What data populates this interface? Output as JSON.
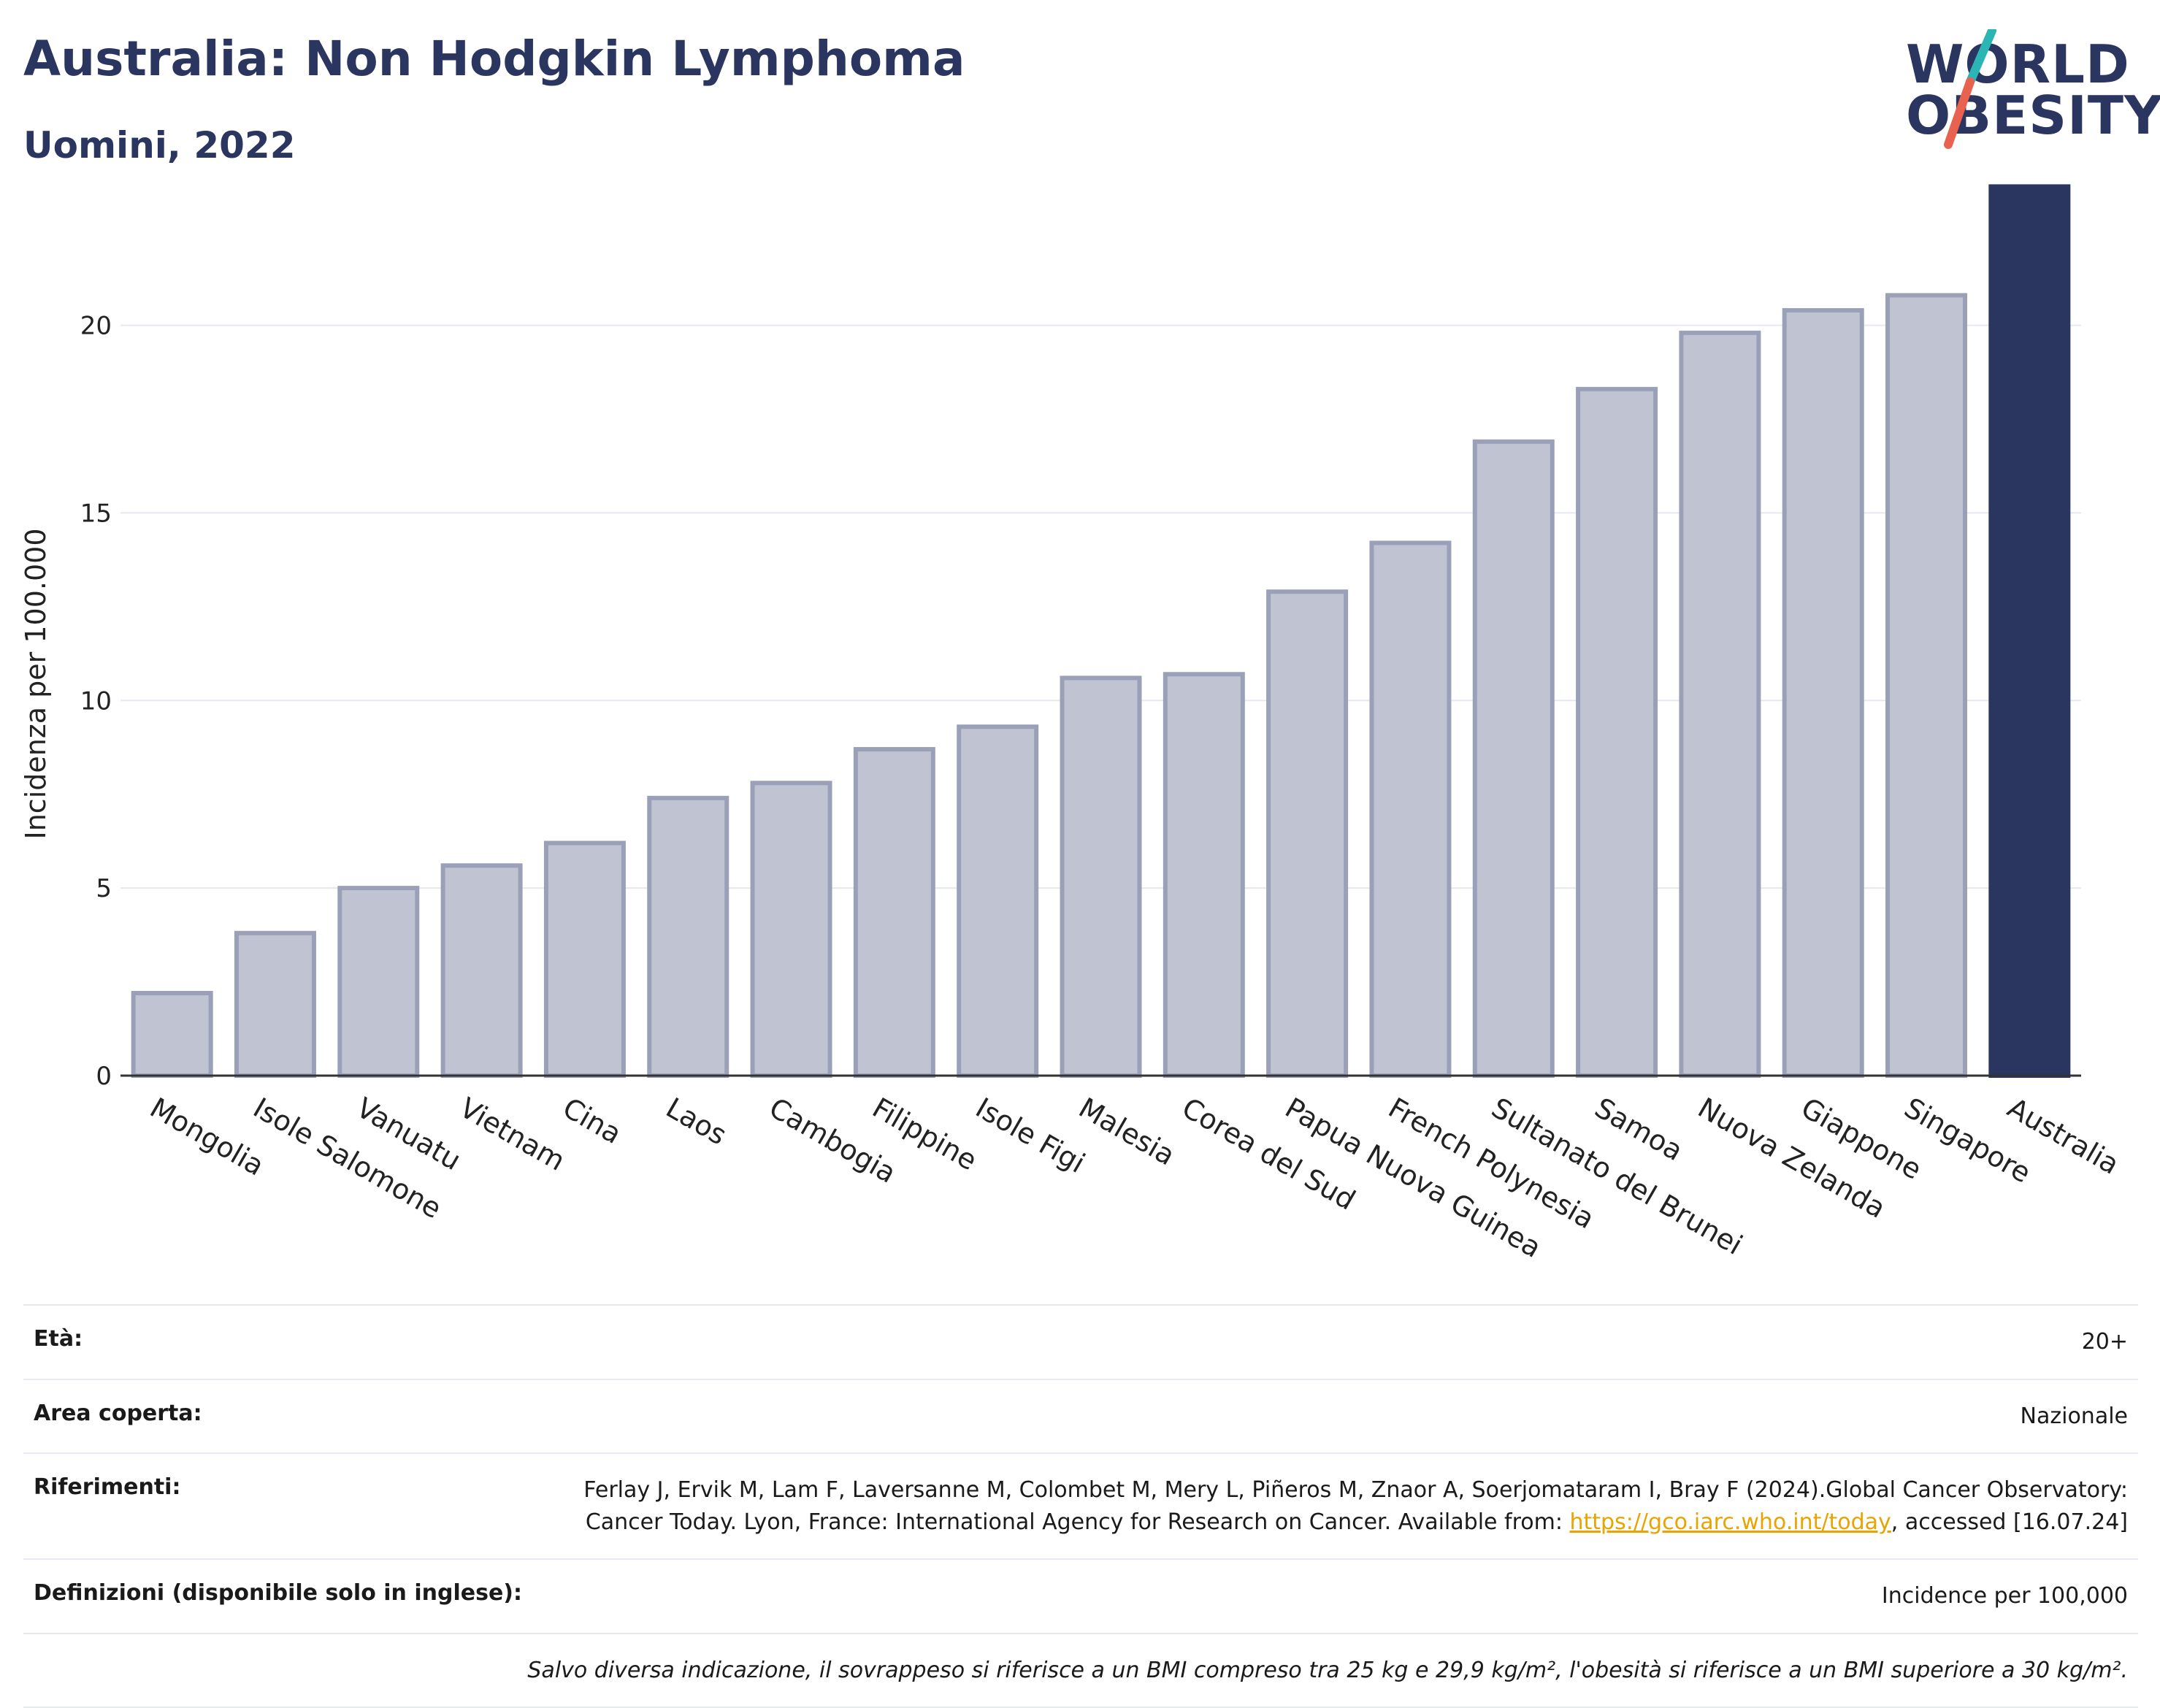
{
  "header": {
    "title": "Australia: Non Hodgkin Lymphoma",
    "subtitle": "Uomini, 2022"
  },
  "logo": {
    "line1": "WORLD",
    "line2": "OBESITY",
    "accent_colors": [
      "#2bb5b5",
      "#e8624f"
    ]
  },
  "colors": {
    "highlight": "#2a3560",
    "bar_fill": "#c0c4d2",
    "bar_stroke": "#9aa0b8",
    "grid": "#e6e8f0"
  },
  "chart_data": {
    "type": "bar",
    "ylabel": "Incidenza per 100.000",
    "ylim": [
      0,
      24
    ],
    "yticks": [
      0,
      5,
      10,
      15,
      20
    ],
    "grid": true,
    "highlight": "Australia",
    "categories": [
      "Mongolia",
      "Isole Salomone",
      "Vanuatu",
      "Vietnam",
      "Cina",
      "Laos",
      "Cambogia",
      "Filippine",
      "Isole Figi",
      "Malesia",
      "Corea del Sud",
      "Papua Nuova Guinea",
      "French Polynesia",
      "Sultanato del Brunei",
      "Samoa",
      "Nuova Zelanda",
      "Giappone",
      "Singapore",
      "Australia"
    ],
    "values": [
      2.2,
      3.8,
      5.0,
      5.6,
      6.2,
      7.4,
      7.8,
      8.7,
      9.3,
      10.6,
      10.7,
      12.9,
      14.2,
      16.9,
      18.3,
      19.8,
      20.4,
      20.8,
      23.7
    ]
  },
  "info": {
    "age_label": "Età:",
    "age_value": "20+",
    "area_label": "Area coperta:",
    "area_value": "Nazionale",
    "ref_label": "Riferimenti:",
    "ref_text": "Ferlay J, Ervik M, Lam F, Laversanne M, Colombet M, Mery L, Piñeros M, Znaor A, Soerjomataram I, Bray F (2024).Global Cancer Observatory: Cancer Today. Lyon, France: International Agency for Research on Cancer. Available from:",
    "ref_link": "https://gco.iarc.who.int/today",
    "ref_after": ", accessed [16.07.24]",
    "def_label": "Definizioni (disponibile solo in inglese):",
    "def_value": "Incidence per 100,000",
    "note": "Salvo diversa indicazione, il sovrappeso si riferisce a un BMI compreso tra 25 kg e 29,9 kg/m², l'obesità si riferisce a un BMI superiore a 30 kg/m²."
  }
}
